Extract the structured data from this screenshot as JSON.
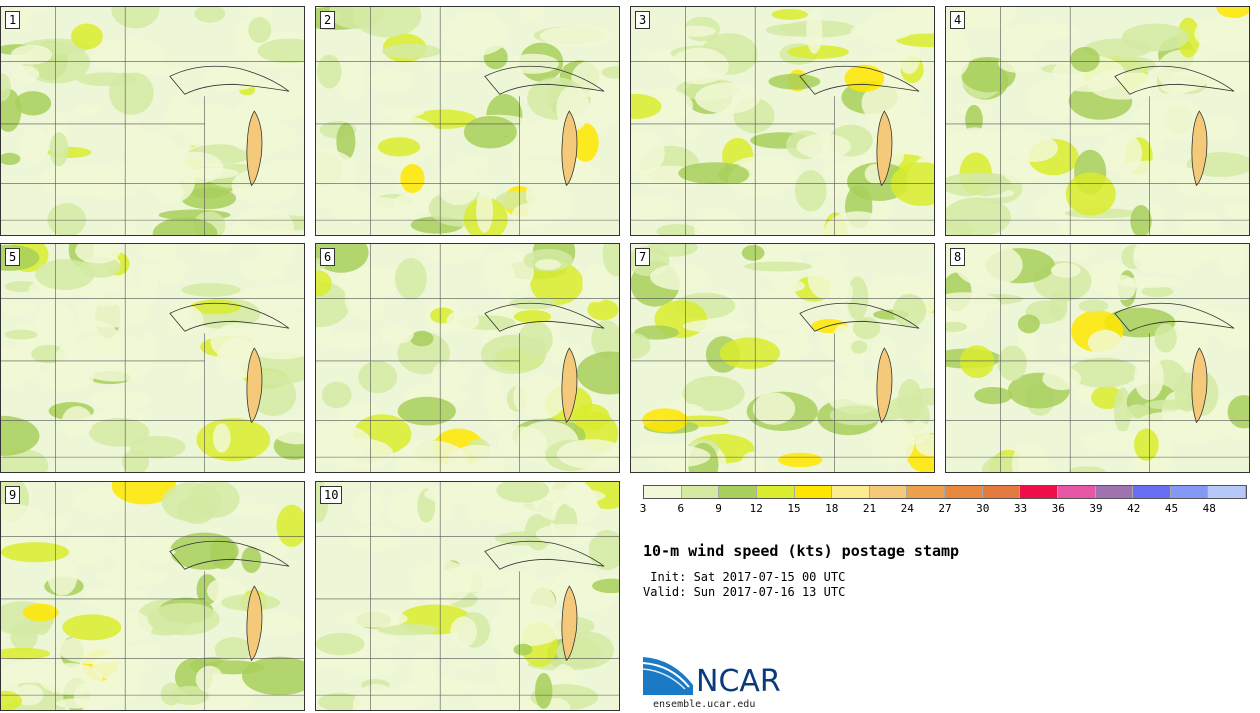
{
  "panels": [
    {
      "label": "1"
    },
    {
      "label": "2"
    },
    {
      "label": "3"
    },
    {
      "label": "4"
    },
    {
      "label": "5"
    },
    {
      "label": "6"
    },
    {
      "label": "7"
    },
    {
      "label": "8"
    },
    {
      "label": "9"
    },
    {
      "label": "10"
    }
  ],
  "legend": {
    "colors": [
      "#f1f8d5",
      "#d4eaa3",
      "#a8cf5c",
      "#d9ec2e",
      "#ffe600",
      "#fdeb90",
      "#f4c97a",
      "#eda14d",
      "#e8893f",
      "#e37a3f",
      "#ee0f4a",
      "#e657a5",
      "#9e73b0",
      "#6a6ef2",
      "#8499f5",
      "#b5c8f8"
    ],
    "ticks": [
      "3",
      "6",
      "9",
      "12",
      "15",
      "18",
      "21",
      "24",
      "27",
      "30",
      "33",
      "36",
      "39",
      "42",
      "45",
      "48"
    ]
  },
  "title": "10-m wind speed (kts) postage stamp",
  "init_line": " Init: Sat 2017-07-15 00 UTC",
  "valid_line": "Valid: Sun 2017-07-16 13 UTC",
  "logo_text": "NCAR",
  "url": "ensemble.ucar.edu"
}
